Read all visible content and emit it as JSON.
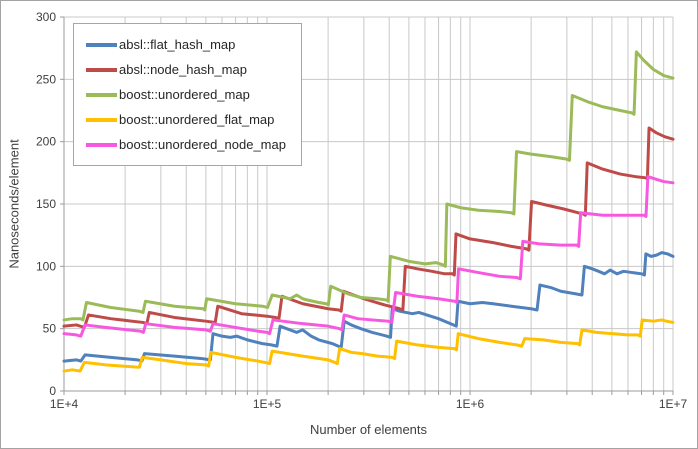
{
  "figure": {
    "background": "#ffffff",
    "border_color": "#a3a3a3",
    "gridline_color": "#c8c8c8",
    "axis_color": "#9b9b9b",
    "text_color": "#3f3f3f"
  },
  "chart_data": {
    "type": "line",
    "title": "",
    "xlabel": "Number of elements",
    "ylabel": "Nanoseconds/element",
    "x_scale": "log10",
    "x_range": [
      10000,
      10000000
    ],
    "y_range": [
      0,
      300
    ],
    "grid": true,
    "legend_position": "top-left",
    "y_ticks": [
      0,
      50,
      100,
      150,
      200,
      250,
      300
    ],
    "x_tick_labels": [
      {
        "value": 10000,
        "label": "1E+4"
      },
      {
        "value": 100000,
        "label": "1E+5"
      },
      {
        "value": 1000000,
        "label": "1E+6"
      },
      {
        "value": 10000000,
        "label": "1E+7"
      }
    ],
    "series": [
      {
        "name": "absl::flat_hash_map",
        "color": "#4F81BD",
        "points": [
          [
            10000,
            24
          ],
          [
            11500,
            25
          ],
          [
            12100,
            24
          ],
          [
            12700,
            29
          ],
          [
            17000,
            27
          ],
          [
            23000,
            25
          ],
          [
            24200,
            24
          ],
          [
            24900,
            30
          ],
          [
            35000,
            28
          ],
          [
            48000,
            26
          ],
          [
            52600,
            25
          ],
          [
            54200,
            46
          ],
          [
            60000,
            44
          ],
          [
            66000,
            43
          ],
          [
            71000,
            44
          ],
          [
            80000,
            41
          ],
          [
            95000,
            38
          ],
          [
            105000,
            37
          ],
          [
            112000,
            36
          ],
          [
            116000,
            52
          ],
          [
            130000,
            49
          ],
          [
            140000,
            47
          ],
          [
            150000,
            49
          ],
          [
            165000,
            44
          ],
          [
            180000,
            41
          ],
          [
            210000,
            38
          ],
          [
            232000,
            35
          ],
          [
            240000,
            56
          ],
          [
            260000,
            53
          ],
          [
            290000,
            50
          ],
          [
            330000,
            47
          ],
          [
            390000,
            44
          ],
          [
            406000,
            43
          ],
          [
            414000,
            66
          ],
          [
            450000,
            64
          ],
          [
            520000,
            62
          ],
          [
            560000,
            63
          ],
          [
            640000,
            60
          ],
          [
            700000,
            58
          ],
          [
            800000,
            54
          ],
          [
            856000,
            52
          ],
          [
            873000,
            72
          ],
          [
            1000000,
            70
          ],
          [
            1150000,
            71
          ],
          [
            1300000,
            70
          ],
          [
            1600000,
            68
          ],
          [
            2000000,
            66
          ],
          [
            2140000,
            65
          ],
          [
            2210000,
            85
          ],
          [
            2500000,
            83
          ],
          [
            2800000,
            80
          ],
          [
            3300000,
            78
          ],
          [
            3560000,
            77
          ],
          [
            3660000,
            100
          ],
          [
            4000000,
            98
          ],
          [
            4300000,
            96
          ],
          [
            4600000,
            94
          ],
          [
            4900000,
            97
          ],
          [
            5300000,
            94
          ],
          [
            5700000,
            96
          ],
          [
            6300000,
            95
          ],
          [
            7000000,
            94
          ],
          [
            7230000,
            93
          ],
          [
            7350000,
            110
          ],
          [
            7800000,
            108
          ],
          [
            8300000,
            109
          ],
          [
            8800000,
            111
          ],
          [
            9400000,
            110
          ],
          [
            10000000,
            108
          ]
        ]
      },
      {
        "name": "absl::node_hash_map",
        "color": "#BE4B48",
        "points": [
          [
            10000,
            52
          ],
          [
            11500,
            53
          ],
          [
            12600,
            51
          ],
          [
            13200,
            61
          ],
          [
            17000,
            58
          ],
          [
            24500,
            55
          ],
          [
            25600,
            54
          ],
          [
            26300,
            63
          ],
          [
            35000,
            59
          ],
          [
            50000,
            56
          ],
          [
            55600,
            55
          ],
          [
            57200,
            68
          ],
          [
            75000,
            62
          ],
          [
            100000,
            60
          ],
          [
            110000,
            59
          ],
          [
            114500,
            58
          ],
          [
            118500,
            76
          ],
          [
            150000,
            70
          ],
          [
            200000,
            66
          ],
          [
            226000,
            65
          ],
          [
            232000,
            64
          ],
          [
            238000,
            80
          ],
          [
            300000,
            74
          ],
          [
            380000,
            69
          ],
          [
            450000,
            66
          ],
          [
            467000,
            65
          ],
          [
            480000,
            100
          ],
          [
            550000,
            98
          ],
          [
            650000,
            96
          ],
          [
            750000,
            94
          ],
          [
            821000,
            94
          ],
          [
            837000,
            93
          ],
          [
            853000,
            126
          ],
          [
            1000000,
            122
          ],
          [
            1300000,
            119
          ],
          [
            1600000,
            116
          ],
          [
            1900000,
            114
          ],
          [
            1950000,
            113
          ],
          [
            2010000,
            152
          ],
          [
            2400000,
            149
          ],
          [
            2900000,
            146
          ],
          [
            3400000,
            143
          ],
          [
            3620000,
            142
          ],
          [
            3700000,
            141
          ],
          [
            3780000,
            183
          ],
          [
            4500000,
            178
          ],
          [
            5500000,
            174
          ],
          [
            6500000,
            172
          ],
          [
            7350000,
            171
          ],
          [
            7480000,
            170
          ],
          [
            7620000,
            211
          ],
          [
            8300000,
            207
          ],
          [
            9100000,
            204
          ],
          [
            10000000,
            202
          ]
        ]
      },
      {
        "name": "boost::unordered_map",
        "color": "#9BBB59",
        "points": [
          [
            10000,
            57
          ],
          [
            11000,
            58
          ],
          [
            12100,
            58
          ],
          [
            12400,
            57
          ],
          [
            12900,
            71
          ],
          [
            17000,
            67
          ],
          [
            23500,
            64
          ],
          [
            24500,
            63
          ],
          [
            25200,
            72
          ],
          [
            35000,
            68
          ],
          [
            48500,
            66
          ],
          [
            49400,
            65
          ],
          [
            50400,
            74
          ],
          [
            70000,
            70
          ],
          [
            95000,
            68
          ],
          [
            100600,
            67
          ],
          [
            106000,
            77
          ],
          [
            130000,
            74
          ],
          [
            140000,
            77
          ],
          [
            150000,
            74
          ],
          [
            158000,
            73
          ],
          [
            180000,
            71
          ],
          [
            196000,
            70
          ],
          [
            200500,
            69
          ],
          [
            206000,
            84
          ],
          [
            250000,
            78
          ],
          [
            290000,
            75
          ],
          [
            350000,
            74
          ],
          [
            389000,
            73
          ],
          [
            395000,
            72
          ],
          [
            405000,
            108
          ],
          [
            500000,
            104
          ],
          [
            600000,
            102
          ],
          [
            680000,
            103
          ],
          [
            741000,
            101
          ],
          [
            756000,
            100
          ],
          [
            769000,
            150
          ],
          [
            900000,
            147
          ],
          [
            1100000,
            145
          ],
          [
            1400000,
            144
          ],
          [
            1600000,
            143
          ],
          [
            1645000,
            142
          ],
          [
            1695000,
            192
          ],
          [
            2000000,
            190
          ],
          [
            2500000,
            188
          ],
          [
            3000000,
            186
          ],
          [
            3090000,
            185
          ],
          [
            3190000,
            237
          ],
          [
            3800000,
            232
          ],
          [
            4500000,
            228
          ],
          [
            5500000,
            225
          ],
          [
            6300000,
            223
          ],
          [
            6430000,
            222
          ],
          [
            6600000,
            272
          ],
          [
            7200000,
            265
          ],
          [
            8000000,
            258
          ],
          [
            9000000,
            253
          ],
          [
            10000000,
            251
          ]
        ]
      },
      {
        "name": "boost::unordered_flat_map",
        "color": "#FFC000",
        "points": [
          [
            10000,
            16
          ],
          [
            11000,
            17
          ],
          [
            12000,
            16
          ],
          [
            12600,
            23
          ],
          [
            16000,
            21
          ],
          [
            23500,
            19
          ],
          [
            24300,
            27
          ],
          [
            30000,
            25
          ],
          [
            40000,
            22
          ],
          [
            50000,
            21
          ],
          [
            51600,
            20
          ],
          [
            52800,
            31
          ],
          [
            70000,
            27
          ],
          [
            90000,
            24
          ],
          [
            97000,
            23
          ],
          [
            103000,
            22
          ],
          [
            106000,
            32
          ],
          [
            150000,
            28
          ],
          [
            200000,
            25
          ],
          [
            215000,
            23
          ],
          [
            222000,
            22
          ],
          [
            228000,
            34
          ],
          [
            260000,
            31
          ],
          [
            295000,
            30
          ],
          [
            350000,
            28
          ],
          [
            415000,
            27
          ],
          [
            425000,
            26
          ],
          [
            435000,
            40
          ],
          [
            550000,
            37
          ],
          [
            700000,
            35
          ],
          [
            840000,
            34
          ],
          [
            858000,
            33
          ],
          [
            875000,
            46
          ],
          [
            1100000,
            42
          ],
          [
            1400000,
            39
          ],
          [
            1700000,
            37
          ],
          [
            1800000,
            36
          ],
          [
            1860000,
            42
          ],
          [
            2300000,
            41
          ],
          [
            2800000,
            39
          ],
          [
            3400000,
            38
          ],
          [
            3470000,
            37
          ],
          [
            3560000,
            49
          ],
          [
            4200000,
            47
          ],
          [
            5000000,
            46
          ],
          [
            6000000,
            45
          ],
          [
            6700000,
            45
          ],
          [
            6900000,
            44
          ],
          [
            7050000,
            57
          ],
          [
            8000000,
            56
          ],
          [
            8800000,
            57
          ],
          [
            9300000,
            56
          ],
          [
            10000000,
            55
          ]
        ]
      },
      {
        "name": "boost::unordered_node_map",
        "color": "#F659E0",
        "points": [
          [
            10000,
            46
          ],
          [
            11500,
            45
          ],
          [
            12100,
            44
          ],
          [
            12700,
            53
          ],
          [
            16000,
            51
          ],
          [
            23800,
            48
          ],
          [
            24600,
            47
          ],
          [
            25300,
            54
          ],
          [
            35000,
            51
          ],
          [
            50000,
            49
          ],
          [
            52600,
            48
          ],
          [
            54200,
            54
          ],
          [
            70000,
            51
          ],
          [
            90000,
            48
          ],
          [
            100000,
            47
          ],
          [
            103000,
            46
          ],
          [
            107000,
            57
          ],
          [
            150000,
            54
          ],
          [
            200000,
            52
          ],
          [
            228000,
            50
          ],
          [
            234000,
            49
          ],
          [
            240000,
            61
          ],
          [
            280000,
            58
          ],
          [
            330000,
            57
          ],
          [
            395000,
            56
          ],
          [
            412000,
            55
          ],
          [
            430000,
            79
          ],
          [
            550000,
            76
          ],
          [
            700000,
            74
          ],
          [
            840000,
            72
          ],
          [
            862000,
            71
          ],
          [
            878000,
            98
          ],
          [
            1100000,
            95
          ],
          [
            1400000,
            92
          ],
          [
            1700000,
            91
          ],
          [
            1770000,
            90
          ],
          [
            1820000,
            120
          ],
          [
            2200000,
            118
          ],
          [
            2800000,
            117
          ],
          [
            3360000,
            117
          ],
          [
            3430000,
            116
          ],
          [
            3510000,
            143
          ],
          [
            4500000,
            141
          ],
          [
            5500000,
            141
          ],
          [
            6500000,
            141
          ],
          [
            7220000,
            141
          ],
          [
            7360000,
            140
          ],
          [
            7520000,
            172
          ],
          [
            8200000,
            170
          ],
          [
            9000000,
            168
          ],
          [
            10000000,
            167
          ]
        ]
      }
    ]
  }
}
